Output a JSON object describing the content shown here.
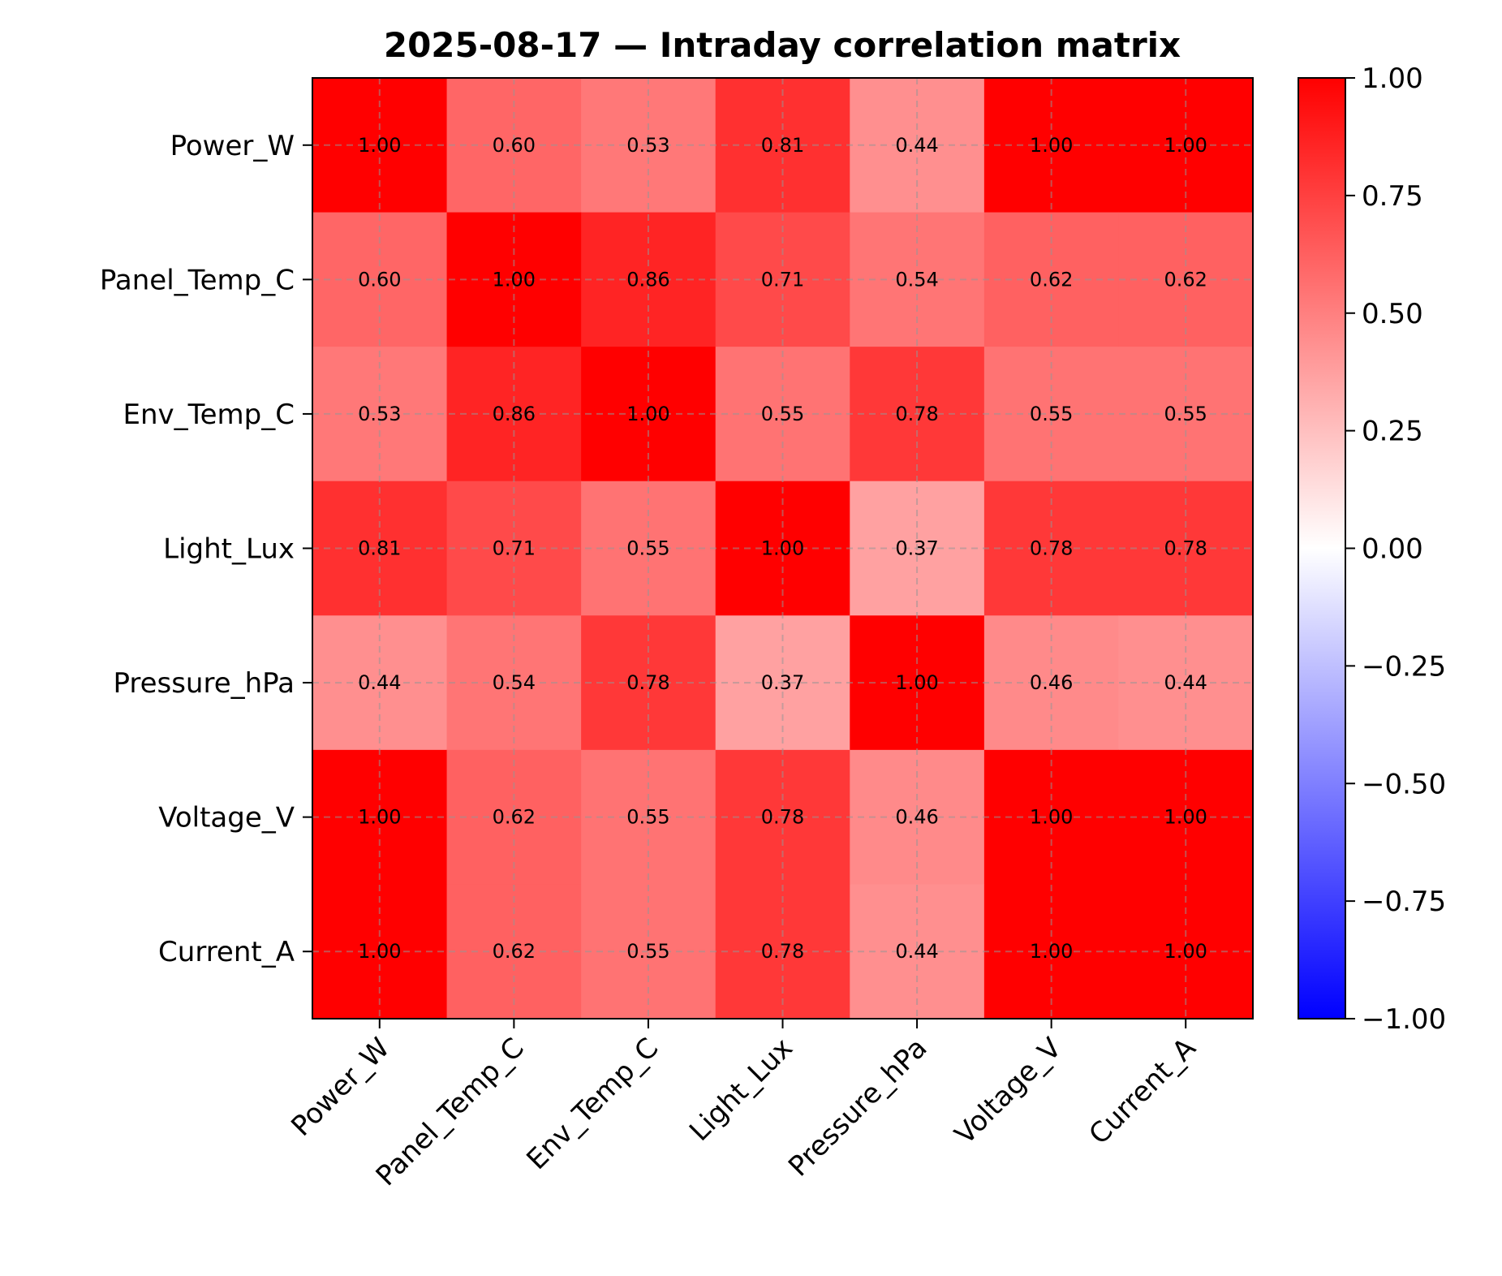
{
  "chart_data": {
    "type": "heatmap",
    "title": "2025-08-17 — Intraday correlation matrix",
    "x_labels": [
      "Power_W",
      "Panel_Temp_C",
      "Env_Temp_C",
      "Light_Lux",
      "Pressure_hPa",
      "Voltage_V",
      "Current_A"
    ],
    "y_labels": [
      "Power_W",
      "Panel_Temp_C",
      "Env_Temp_C",
      "Light_Lux",
      "Pressure_hPa",
      "Voltage_V",
      "Current_A"
    ],
    "values": [
      [
        1.0,
        0.6,
        0.53,
        0.81,
        0.44,
        1.0,
        1.0
      ],
      [
        0.6,
        1.0,
        0.86,
        0.71,
        0.54,
        0.62,
        0.62
      ],
      [
        0.53,
        0.86,
        1.0,
        0.55,
        0.78,
        0.55,
        0.55
      ],
      [
        0.81,
        0.71,
        0.55,
        1.0,
        0.37,
        0.78,
        0.78
      ],
      [
        0.44,
        0.54,
        0.78,
        0.37,
        1.0,
        0.46,
        0.44
      ],
      [
        1.0,
        0.62,
        0.55,
        0.78,
        0.46,
        1.0,
        1.0
      ],
      [
        1.0,
        0.62,
        0.55,
        0.78,
        0.44,
        1.0,
        1.0
      ]
    ],
    "value_format_decimals": 2,
    "colorscale": "bwr",
    "vmin": -1.0,
    "vmax": 1.0,
    "colorbar_ticks": [
      "1.00",
      "0.75",
      "0.50",
      "0.25",
      "0.00",
      "−0.25",
      "−0.50",
      "−0.75",
      "−1.00"
    ],
    "colorbar_tick_values": [
      1.0,
      0.75,
      0.5,
      0.25,
      0.0,
      -0.25,
      -0.5,
      -0.75,
      -1.0
    ],
    "grid": true,
    "grid_style": "dashed",
    "colors": {
      "low": "#0000ff",
      "mid": "#ffffff",
      "high": "#ff0000"
    }
  }
}
